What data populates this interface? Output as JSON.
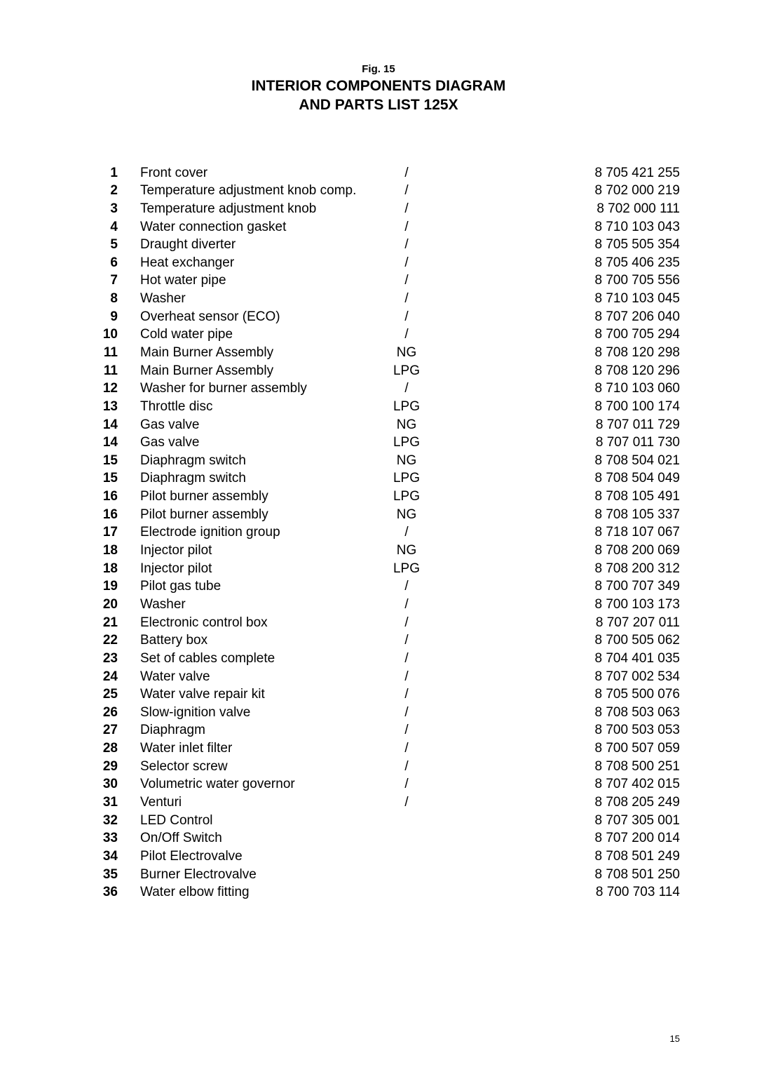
{
  "header": {
    "fig_label": "Fig. 15",
    "title_line1": "INTERIOR COMPONENTS DIAGRAM",
    "title_line2": "AND PARTS LIST 125X"
  },
  "parts": [
    {
      "num": "1",
      "desc": "Front cover",
      "gas": "/",
      "part": "8 705 421 255"
    },
    {
      "num": "2",
      "desc": "Temperature adjustment knob comp.",
      "gas": "/",
      "part": "8 702 000 219"
    },
    {
      "num": "3",
      "desc": "Temperature adjustment knob",
      "gas": "/",
      "part": "8 702 000 111"
    },
    {
      "num": "4",
      "desc": "Water connection gasket",
      "gas": "/",
      "part": "8 710 103 043"
    },
    {
      "num": "5",
      "desc": "Draught diverter",
      "gas": "/",
      "part": "8 705 505 354"
    },
    {
      "num": "6",
      "desc": "Heat exchanger",
      "gas": "/",
      "part": "8 705 406 235"
    },
    {
      "num": "7",
      "desc": "Hot water pipe",
      "gas": "/",
      "part": "8 700 705 556"
    },
    {
      "num": "8",
      "desc": "Washer",
      "gas": "/",
      "part": "8 710 103 045"
    },
    {
      "num": "9",
      "desc": "Overheat sensor (ECO)",
      "gas": "/",
      "part": "8 707 206 040"
    },
    {
      "num": "10",
      "desc": "Cold water pipe",
      "gas": "/",
      "part": "8 700 705 294"
    },
    {
      "num": "11",
      "desc": "Main Burner Assembly",
      "gas": "NG",
      "part": "8 708 120 298"
    },
    {
      "num": "11",
      "desc": "Main Burner Assembly",
      "gas": "LPG",
      "part": "8 708 120 296"
    },
    {
      "num": "12",
      "desc": "Washer for burner assembly",
      "gas": "/",
      "part": "8 710 103 060"
    },
    {
      "num": "13",
      "desc": "Throttle disc",
      "gas": "LPG",
      "part": "8 700 100 174"
    },
    {
      "num": "14",
      "desc": "Gas valve",
      "gas": "NG",
      "part": "8 707 011 729"
    },
    {
      "num": "14",
      "desc": "Gas valve",
      "gas": "LPG",
      "part": "8 707 011 730"
    },
    {
      "num": "15",
      "desc": "Diaphragm switch",
      "gas": "NG",
      "part": "8 708 504 021"
    },
    {
      "num": "15",
      "desc": "Diaphragm switch",
      "gas": "LPG",
      "part": "8 708 504 049"
    },
    {
      "num": "16",
      "desc": "Pilot burner assembly",
      "gas": "LPG",
      "part": "8 708 105 491"
    },
    {
      "num": "16",
      "desc": "Pilot burner assembly",
      "gas": "NG",
      "part": "8 708 105 337"
    },
    {
      "num": "17",
      "desc": "Electrode ignition group",
      "gas": "/",
      "part": "8 718 107 067"
    },
    {
      "num": "18",
      "desc": "Injector pilot",
      "gas": "NG",
      "part": "8 708 200 069"
    },
    {
      "num": "18",
      "desc": "Injector pilot",
      "gas": "LPG",
      "part": "8 708 200 312"
    },
    {
      "num": "19",
      "desc": "Pilot gas tube",
      "gas": "/",
      "part": "8 700 707 349"
    },
    {
      "num": "20",
      "desc": "Washer",
      "gas": "/",
      "part": "8 700 103 173"
    },
    {
      "num": "21",
      "desc": "Electronic control box",
      "gas": "/",
      "part": "8 707 207 011"
    },
    {
      "num": "22",
      "desc": "Battery box",
      "gas": "/",
      "part": "8 700 505 062"
    },
    {
      "num": "23",
      "desc": "Set of cables complete",
      "gas": "/",
      "part": "8 704 401 035"
    },
    {
      "num": "24",
      "desc": "Water valve",
      "gas": "/",
      "part": "8 707 002 534"
    },
    {
      "num": "25",
      "desc": "Water valve repair kit",
      "gas": "/",
      "part": "8 705 500 076"
    },
    {
      "num": "26",
      "desc": "Slow-ignition valve",
      "gas": "/",
      "part": "8 708 503 063"
    },
    {
      "num": "27",
      "desc": "Diaphragm",
      "gas": "/",
      "part": "8 700 503 053"
    },
    {
      "num": "28",
      "desc": "Water inlet filter",
      "gas": "/",
      "part": "8 700 507 059"
    },
    {
      "num": "29",
      "desc": "Selector screw",
      "gas": "/",
      "part": "8 708 500 251"
    },
    {
      "num": "30",
      "desc": "Volumetric water governor",
      "gas": "/",
      "part": "8 707 402 015"
    },
    {
      "num": "31",
      "desc": "Venturi",
      "gas": "/",
      "part": "8 708 205 249"
    },
    {
      "num": "32",
      "desc": "LED Control",
      "gas": "",
      "part": "8 707 305 001"
    },
    {
      "num": "33",
      "desc": "On/Off Switch",
      "gas": "",
      "part": "8 707 200 014"
    },
    {
      "num": "34",
      "desc": "Pilot Electrovalve",
      "gas": "",
      "part": "8 708 501 249"
    },
    {
      "num": "35",
      "desc": "Burner Electrovalve",
      "gas": "",
      "part": "8 708 501 250"
    },
    {
      "num": "36",
      "desc": "Water elbow fitting",
      "gas": "",
      "part": "8 700 703 114"
    }
  ],
  "page_number": "15"
}
